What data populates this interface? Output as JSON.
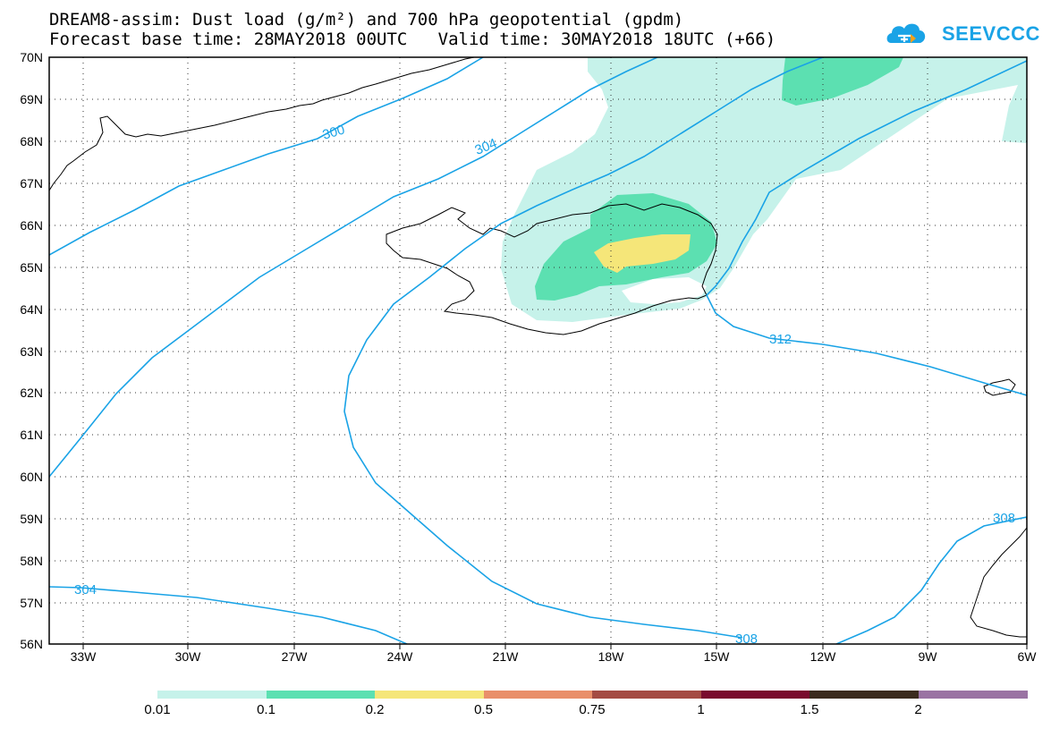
{
  "header": {
    "line1": "DREAM8-assim: Dust load (g/m²) and 700 hPa geopotential (gpdm)",
    "line2": "Forecast base time: 28MAY2018 00UTC   Valid time: 30MAY2018 18UTC (+66)"
  },
  "logo": {
    "text": "SEEVCCC",
    "icon": "cloud-logo-icon",
    "color": "#1aa3e6"
  },
  "map": {
    "lat_labels": [
      "70N",
      "69N",
      "68N",
      "67N",
      "66N",
      "65N",
      "64N",
      "63N",
      "62N",
      "61N",
      "60N",
      "59N",
      "58N",
      "57N",
      "56N"
    ],
    "lon_labels": [
      "33W",
      "30W",
      "27W",
      "24W",
      "21W",
      "18W",
      "15W",
      "12W",
      "9W",
      "6W"
    ],
    "contour_labels": [
      "300",
      "304",
      "312",
      "308",
      "304",
      "308"
    ],
    "contour_color": "#1aa3e6"
  },
  "colorbar": {
    "colors": [
      "#c6f2ea",
      "#5ce0b1",
      "#f5e679",
      "#e98f6a",
      "#a44b43",
      "#7a0b2e",
      "#3b2b1e",
      "#9a73a3"
    ],
    "labels": [
      "0.01",
      "0.1",
      "0.2",
      "0.5",
      "0.75",
      "1",
      "1.5",
      "2"
    ]
  }
}
